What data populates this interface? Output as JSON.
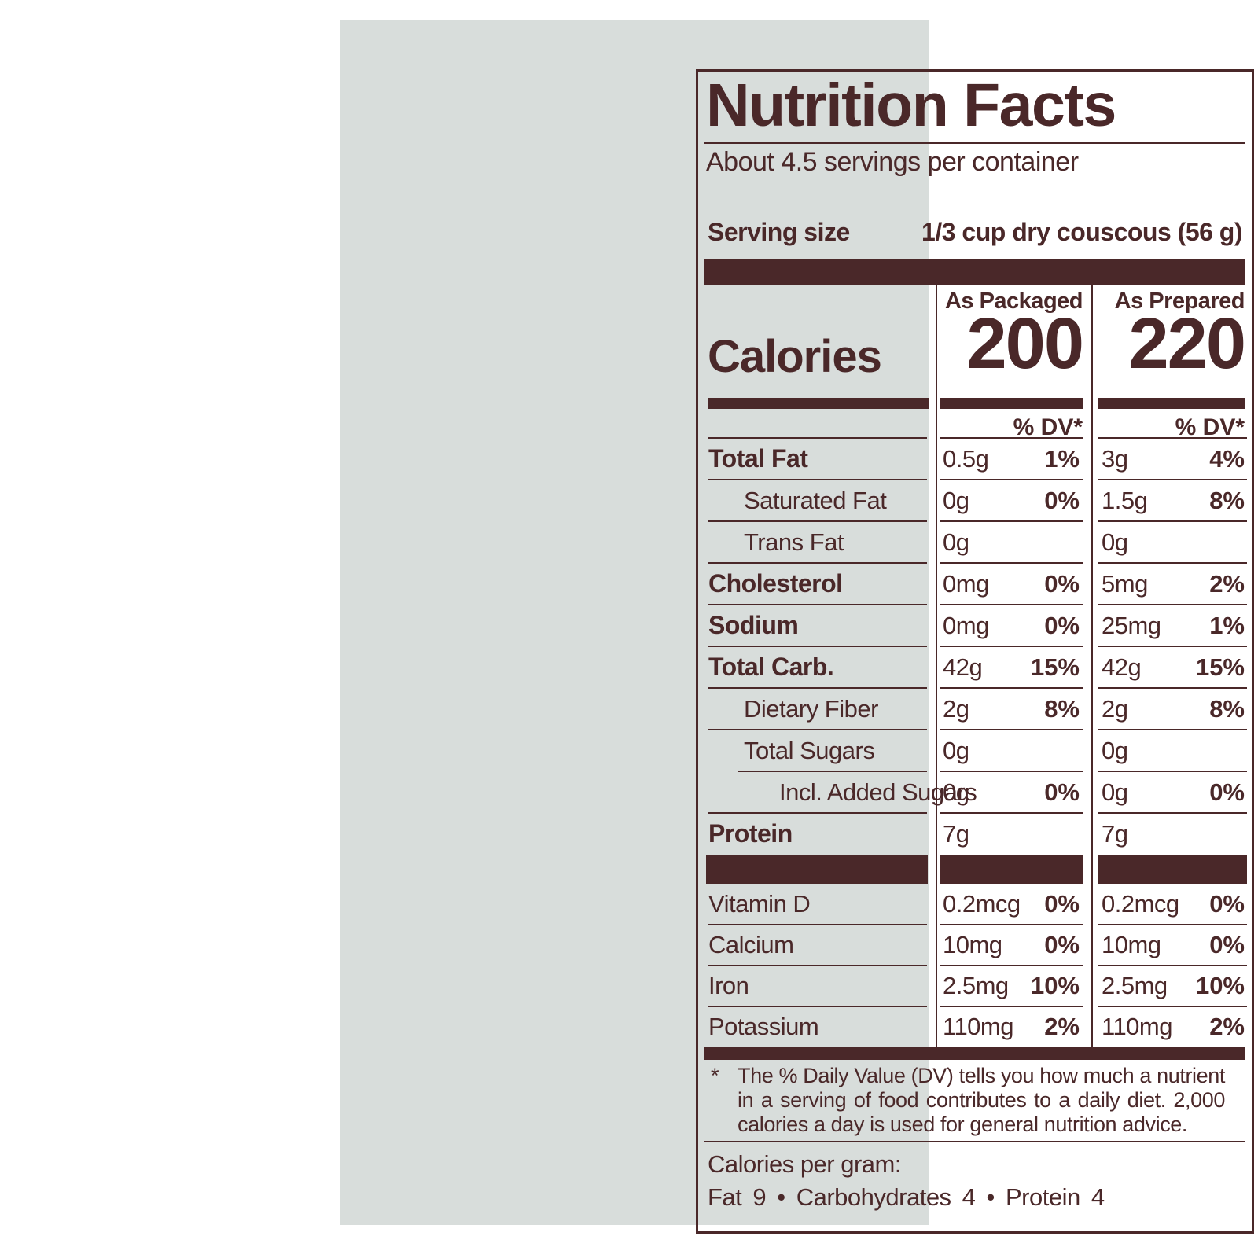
{
  "colors": {
    "ink": "#4a2829",
    "paper": "#d8dddb"
  },
  "header": {
    "title": "Nutrition Facts",
    "servings": "About 4.5 servings per container",
    "serving_size_label": "Serving size",
    "serving_size_value": "1/3 cup dry couscous (56 g)"
  },
  "calories": {
    "label": "Calories",
    "col_packaged_header": "As Packaged",
    "col_prepared_header": "As Prepared",
    "packaged_value": "200",
    "prepared_value": "220",
    "dv_header_packaged": "% DV*",
    "dv_header_prepared": "% DV*"
  },
  "nutrient_rows": [
    {
      "name": "Total Fat",
      "bold": true,
      "indent": 0,
      "packaged_amount": "0.5g",
      "packaged_dv": "1%",
      "prepared_amount": "3g",
      "prepared_dv": "4%"
    },
    {
      "name": "Saturated Fat",
      "bold": false,
      "indent": 1,
      "packaged_amount": "0g",
      "packaged_dv": "0%",
      "prepared_amount": "1.5g",
      "prepared_dv": "8%"
    },
    {
      "name": "Trans Fat",
      "bold": false,
      "indent": 1,
      "packaged_amount": "0g",
      "packaged_dv": "",
      "prepared_amount": "0g",
      "prepared_dv": ""
    },
    {
      "name": "Cholesterol",
      "bold": true,
      "indent": 0,
      "packaged_amount": "0mg",
      "packaged_dv": "0%",
      "prepared_amount": "5mg",
      "prepared_dv": "2%"
    },
    {
      "name": "Sodium",
      "bold": true,
      "indent": 0,
      "packaged_amount": "0mg",
      "packaged_dv": "0%",
      "prepared_amount": "25mg",
      "prepared_dv": "1%"
    },
    {
      "name": "Total Carb.",
      "bold": true,
      "indent": 0,
      "packaged_amount": "42g",
      "packaged_dv": "15%",
      "prepared_amount": "42g",
      "prepared_dv": "15%"
    },
    {
      "name": "Dietary Fiber",
      "bold": false,
      "indent": 1,
      "packaged_amount": "2g",
      "packaged_dv": "8%",
      "prepared_amount": "2g",
      "prepared_dv": "8%"
    },
    {
      "name": "Total Sugars",
      "bold": false,
      "indent": 1,
      "packaged_amount": "0g",
      "packaged_dv": "",
      "prepared_amount": "0g",
      "prepared_dv": ""
    },
    {
      "name": "Incl. Added Sugars",
      "bold": false,
      "indent": 2,
      "packaged_amount": "0g",
      "packaged_dv": "0%",
      "prepared_amount": "0g",
      "prepared_dv": "0%"
    },
    {
      "name": "Protein",
      "bold": true,
      "indent": 0,
      "packaged_amount": "7g",
      "packaged_dv": "",
      "prepared_amount": "7g",
      "prepared_dv": ""
    }
  ],
  "vitamin_rows": [
    {
      "name": "Vitamin D",
      "packaged_amount": "0.2mcg",
      "packaged_dv": "0%",
      "prepared_amount": "0.2mcg",
      "prepared_dv": "0%"
    },
    {
      "name": "Calcium",
      "packaged_amount": "10mg",
      "packaged_dv": "0%",
      "prepared_amount": "10mg",
      "prepared_dv": "0%"
    },
    {
      "name": "Iron",
      "packaged_amount": "2.5mg",
      "packaged_dv": "10%",
      "prepared_amount": "2.5mg",
      "prepared_dv": "10%"
    },
    {
      "name": "Potassium",
      "packaged_amount": "110mg",
      "packaged_dv": "2%",
      "prepared_amount": "110mg",
      "prepared_dv": "2%"
    }
  ],
  "footnote": {
    "marker": "*",
    "text": "The % Daily Value (DV) tells you how much a nutrient in a serving of food contributes to a daily diet. 2,000 calories a day is used for general nutrition advice."
  },
  "calories_per_gram": {
    "label": "Calories per gram:",
    "values": "Fat 9 • Carbohydrates 4 • Protein 4"
  }
}
